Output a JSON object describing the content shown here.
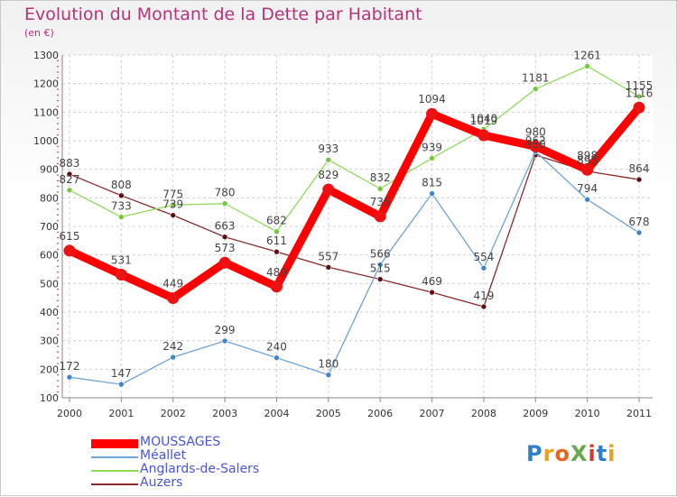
{
  "title": "Evolution du Montant de la Dette par Habitant",
  "unit": "(en €)",
  "logo": {
    "text": "ProXiti",
    "colors": [
      "#2c7fcf",
      "#e8a21b",
      "#e8661b",
      "#6aa84f",
      "#d9382f",
      "#2c7fcf",
      "#e8a21b"
    ]
  },
  "chart_data": {
    "type": "line",
    "x": [
      "2000",
      "2001",
      "2002",
      "2003",
      "2004",
      "2005",
      "2006",
      "2007",
      "2008",
      "2009",
      "2010",
      "2011"
    ],
    "yticks": [
      "100",
      "200",
      "300",
      "400",
      "500",
      "600",
      "700",
      "800",
      "900",
      "1000",
      "1100",
      "1200",
      "1300"
    ],
    "ylim": [
      100,
      1300
    ],
    "grid": true,
    "legend_position": "bottom",
    "series": [
      {
        "name": "Auzers",
        "color": "#8b2a2a",
        "dot": "#5a1010",
        "values": [
          883,
          808,
          739,
          663,
          611,
          557,
          515,
          469,
          419,
          950,
          893,
          864
        ],
        "labels": [
          "883",
          "808",
          "739",
          "663",
          "611",
          "557",
          "515",
          "469",
          "419",
          "950",
          "893",
          "864"
        ]
      },
      {
        "name": "Anglards-de-Salers",
        "color": "#8edc5a",
        "dot": "#74c83e",
        "values": [
          827,
          733,
          775,
          780,
          682,
          933,
          832,
          939,
          1040,
          1181,
          1261,
          1155
        ],
        "labels": [
          "827",
          "733",
          "775",
          "780",
          "682",
          "933",
          "832",
          "939",
          "1040",
          "1181",
          "1261",
          "1155"
        ]
      },
      {
        "name": "Méallet",
        "color": "#6fa4d6",
        "dot": "#3f86c9",
        "values": [
          172,
          147,
          242,
          299,
          240,
          180,
          566,
          815,
          554,
          962,
          794,
          678
        ],
        "labels": [
          "172",
          "147",
          "242",
          "299",
          "240",
          "180",
          "566",
          "815",
          "554",
          "962",
          "794",
          "678"
        ]
      },
      {
        "name": "MOUSSAGES",
        "color": "#ff0000",
        "dot": "#ee1111",
        "values": [
          615,
          531,
          449,
          573,
          489,
          829,
          735,
          1094,
          1019,
          980,
          898,
          1116
        ],
        "labels": [
          "615",
          "531",
          "449",
          "573",
          "489",
          "829",
          "735",
          "1094",
          "1019",
          "980",
          "898",
          "1116"
        ]
      }
    ],
    "legend": [
      "MOUSSAGES",
      "Méallet",
      "Anglards-de-Salers",
      "Auzers"
    ]
  }
}
